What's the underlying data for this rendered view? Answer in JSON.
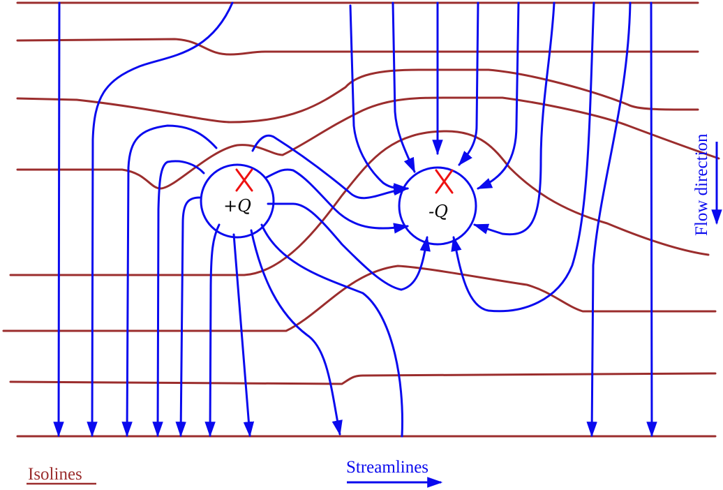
{
  "colors": {
    "isoline": "#9b2d2d",
    "streamline": "#0a0aee",
    "source_marker": "#ee1111",
    "background": "#ffffff"
  },
  "source": {
    "label": "+Q",
    "marker": "x-cross-icon"
  },
  "sink": {
    "label": "-Q",
    "marker": "x-cross-icon"
  },
  "flow_direction": {
    "label": "Flow direction"
  },
  "legend": {
    "isolines_label": "Isolines",
    "streamlines_label": "Streamlines"
  }
}
